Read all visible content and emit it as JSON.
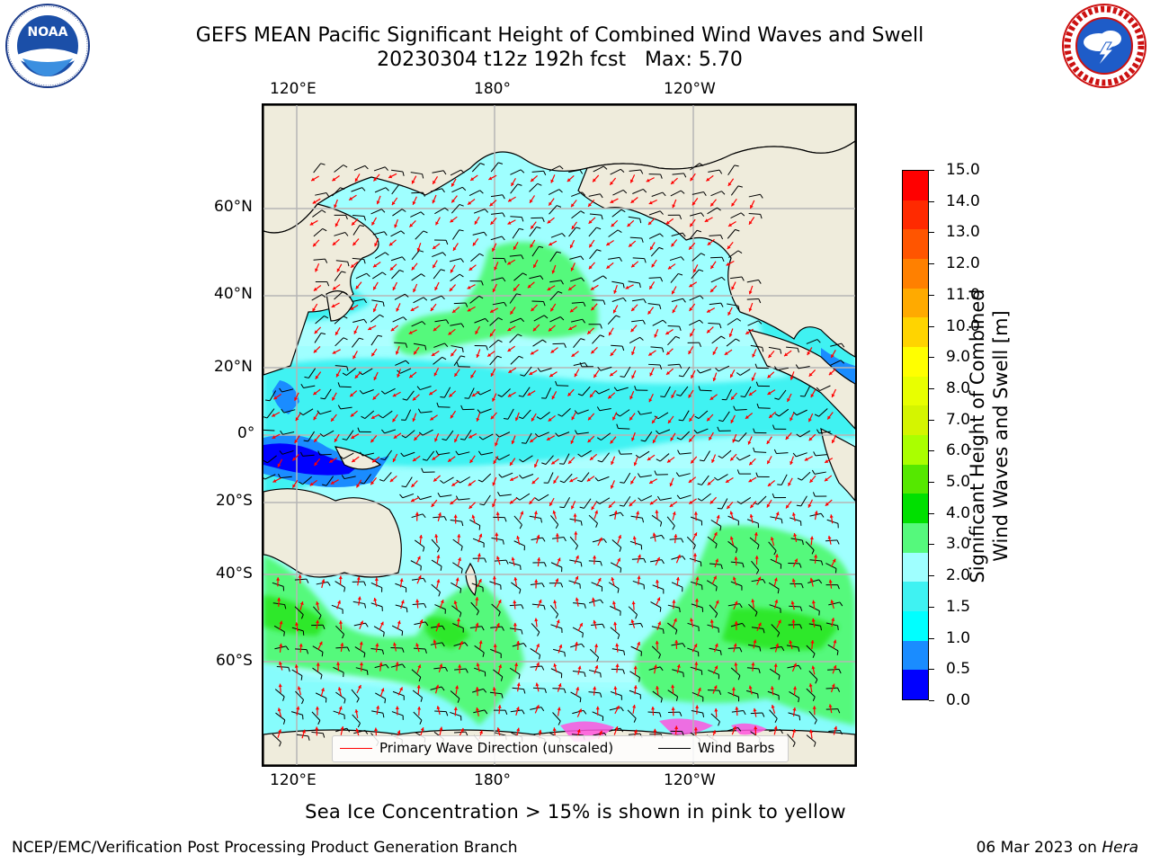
{
  "title": {
    "line1": "GEFS MEAN Pacific Significant Height of Combined Wind Waves and Swell",
    "line2": "20230304 t12z 192h fcst   Max: 5.70"
  },
  "map": {
    "top_lon_labels": [
      "120°E",
      "180°",
      "120°W"
    ],
    "bottom_lon_labels": [
      "120°E",
      "180°",
      "120°W"
    ],
    "lat_labels": [
      "60°N",
      "40°N",
      "20°N",
      "0°",
      "20°S",
      "40°S",
      "60°S"
    ],
    "legend": {
      "wave_label": "Primary Wave Direction (unscaled)",
      "barb_label": "Wind Barbs",
      "wave_color": "#ff0000",
      "barb_color": "#000000"
    },
    "colors": {
      "ocean_2_3m": "#9fffff",
      "land": "#efecdc",
      "swell_3_4m": "#55f97c",
      "swell_4_5m": "#2fe82a",
      "calm_1_1_5m": "#3ff2f2",
      "calm_0_5_1m": "#1a8cff",
      "calm_0_0_5m": "#0000ff",
      "sea_ice": "#ff55dd"
    }
  },
  "colorbar": {
    "label_line1": "Significant Height of Combined",
    "label_line2": "Wind Waves and Swell [m]",
    "ticks": [
      "15.0",
      "14.0",
      "13.0",
      "12.0",
      "11.0",
      "10.0",
      "9.0",
      "8.0",
      "7.0",
      "6.0",
      "5.0",
      "4.0",
      "3.0",
      "2.0",
      "1.5",
      "1.0",
      "0.5",
      "0.0"
    ],
    "bands": [
      "#ff0000",
      "#ff2a00",
      "#ff5500",
      "#ff8000",
      "#ffaa00",
      "#ffd400",
      "#ffff00",
      "#e8ff00",
      "#d4f500",
      "#aaff00",
      "#55e800",
      "#00e000",
      "#55f97c",
      "#9fffff",
      "#3ff2f2",
      "#00ffff",
      "#1a8cff",
      "#0000ff"
    ]
  },
  "ice_note": "Sea Ice Concentration > 15% is shown in pink to yellow",
  "footer": {
    "left": "NCEP/EMC/Verification Post Processing Product Generation Branch",
    "right_prefix": "06 Mar 2023 on ",
    "right_machine": "Hera"
  },
  "logos": {
    "noaa_text": "NOAA",
    "noaa_ring": "NATIONAL OCEANIC AND ATMOSPHERIC ADMINISTRATION · U.S. DEPARTMENT OF COMMERCE",
    "nws_ring": "NATIONAL WEATHER SERVICE"
  }
}
